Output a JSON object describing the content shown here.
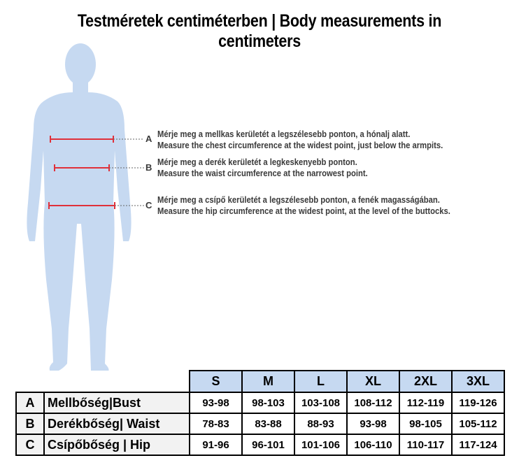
{
  "title": "Testméretek centiméterben | Body measurements in centimeters",
  "colors": {
    "figure": "#c6d9f1",
    "measure_line": "#e0303a",
    "header_bg": "#c6d9f1"
  },
  "measurements": [
    {
      "marker": "A",
      "hu": "Mérje meg a mellkas kerületét a legszélesebb ponton, a hónalj alatt.",
      "en": "Measure the chest circumference at the widest point, just below the armpits."
    },
    {
      "marker": "B",
      "hu": "Mérje meg a derék kerületét a legkeskenyebb ponton.",
      "en": "Measure the waist circumference at the narrowest point."
    },
    {
      "marker": "C",
      "hu": "Mérje meg a csípő kerületét a legszélesebb ponton, a fenék magasságában.",
      "en": "Measure the hip circumference at the widest point, at the level of the buttocks."
    }
  ],
  "table": {
    "sizes": [
      "S",
      "M",
      "L",
      "XL",
      "2XL",
      "3XL"
    ],
    "rows": [
      {
        "letter": "A",
        "label": "Mellbőség|Bust",
        "values": [
          "93-98",
          "98-103",
          "103-108",
          "108-112",
          "112-119",
          "119-126"
        ]
      },
      {
        "letter": "B",
        "label": "Derékbőség| Waist",
        "values": [
          "78-83",
          "83-88",
          "88-93",
          "93-98",
          "98-105",
          "105-112"
        ]
      },
      {
        "letter": "C",
        "label": "Csípőbőség | Hip",
        "values": [
          "91-96",
          "96-101",
          "101-106",
          "106-110",
          "110-117",
          "117-124"
        ]
      }
    ]
  }
}
